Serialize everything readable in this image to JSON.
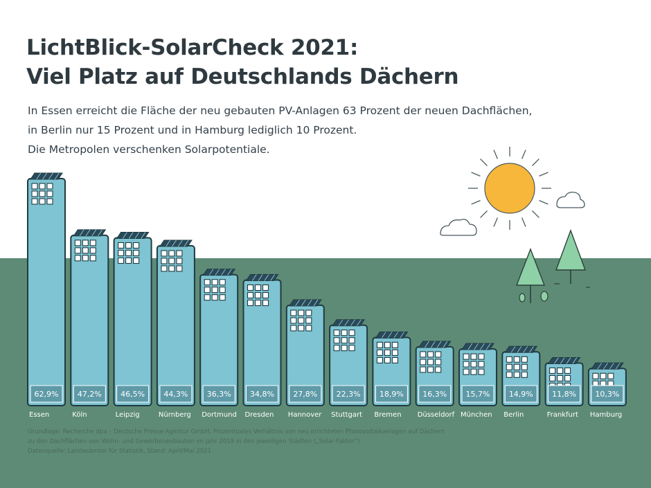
{
  "header": {
    "title_line1": "LichtBlick-SolarCheck 2021:",
    "title_line2": "Viel Platz auf Deutschlands Dächern",
    "subtitle_lines": [
      "In Essen erreicht die Fläche der neu gebauten PV-Anlagen 63 Prozent der neuen Dachflächen,",
      "in Berlin nur 15 Prozent und in Hamburg lediglich 10 Prozent.",
      "Die Metropolen verschenken Solarpotentiale."
    ]
  },
  "chart_data": {
    "type": "bar",
    "categories": [
      "Essen",
      "Köln",
      "Leipzig",
      "Nürnberg",
      "Dortmund",
      "Dresden",
      "Hannover",
      "Stuttgart",
      "Bremen",
      "Düsseldorf",
      "München",
      "Berlin",
      "Frankfurt",
      "Hamburg"
    ],
    "values": [
      62.9,
      47.2,
      46.5,
      44.3,
      36.3,
      34.8,
      27.8,
      22.3,
      18.9,
      16.3,
      15.7,
      14.9,
      11.8,
      10.3
    ],
    "value_labels": [
      "62,9%",
      "47,2%",
      "46,5%",
      "44,3%",
      "36,3%",
      "34,8%",
      "27,8%",
      "22,3%",
      "18,9%",
      "16,3%",
      "15,7%",
      "14,9%",
      "11,8%",
      "10,3%"
    ],
    "unit": "%"
  },
  "colors": {
    "ground": "#5e8b76",
    "building_fill": "#7ec4d2",
    "building_stroke": "#203a40",
    "label_box": "#5f9aa7",
    "sun": "#f7b73a",
    "tree": "#8ed1a6"
  },
  "footer": {
    "lines": [
      "Grundlage: Recherche dpa – Deutsche Presse-Agentur GmbH. Prozentuales Verhältnis von neu errichteten Photovoltaikanlagen auf Dächern",
      "zu den Dachflächen von Wohn- und Gewerbeneubauten im Jahr 2019 in den jeweiligen Städten („Solar-Faktor“).",
      "Datenquelle: Landesämter für Statistik, Stand: April/Mai 2021"
    ]
  }
}
